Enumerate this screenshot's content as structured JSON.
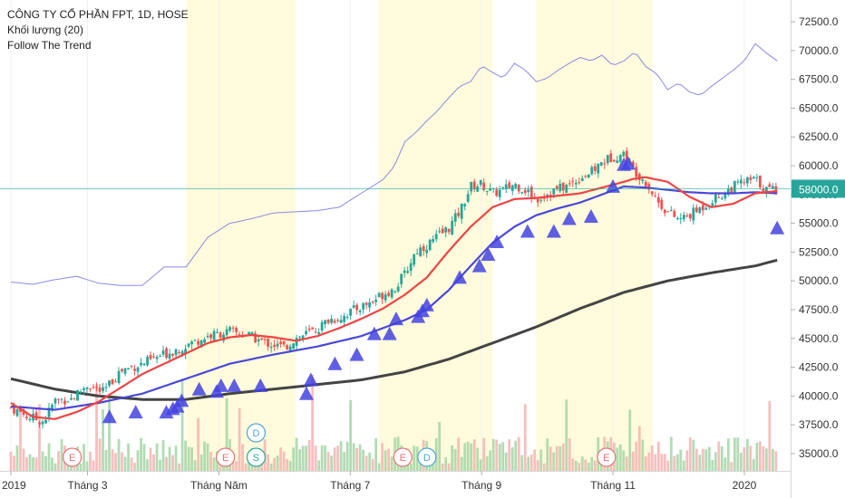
{
  "chart_data": {
    "type": "candlestick",
    "legend": {
      "title": "CÔNG TY CỔ PHẦN FPT, 1D, HOSE",
      "volume_label": "Khối lượng (20)",
      "indicator_label": "Follow The Trend"
    },
    "y_axis": {
      "side": "right",
      "ylim": [
        33500,
        74000
      ],
      "ticks": [
        "72500.0",
        "70000.0",
        "67500.0",
        "65000.0",
        "62500.0",
        "60000.0",
        "57500.0",
        "55000.0",
        "52500.0",
        "50000.0",
        "47500.0",
        "45000.0",
        "42500.0",
        "40000.0",
        "37500.0",
        "35000.0"
      ],
      "tick_values": [
        72500,
        70000,
        67500,
        65000,
        62500,
        60000,
        57500,
        55000,
        52500,
        50000,
        47500,
        45000,
        42500,
        40000,
        37500,
        35000
      ]
    },
    "x_axis": {
      "tick_labels": [
        "2019",
        "Tháng 3",
        "Tháng Năm",
        "Tháng 7",
        "Tháng 9",
        "Tháng 11",
        "2020"
      ],
      "tick_days": [
        0,
        35,
        95,
        155,
        215,
        275,
        335
      ],
      "range_days": [
        0,
        352
      ]
    },
    "current_price": {
      "value": 58000,
      "label": "58000.0",
      "color": "#26a69a"
    },
    "highlight_bands_days": [
      [
        80,
        130
      ],
      [
        168,
        220
      ],
      [
        240,
        293
      ]
    ],
    "colors": {
      "up": "#26a69a",
      "down": "#ef5350",
      "vol_up": "#a5d6a7",
      "vol_down": "#f4b4b4",
      "ma_fast": "#ef4444",
      "ma_mid": "#4848d8",
      "ma_slow": "#444444",
      "thin_line": "#8a8ae6",
      "triangle": "#4343e0",
      "band": "#fffbdc"
    },
    "close_series": {
      "days": [
        0,
        8,
        15,
        20,
        28,
        35,
        42,
        50,
        60,
        70,
        80,
        90,
        100,
        108,
        115,
        125,
        130,
        135,
        140,
        145,
        150,
        158,
        165,
        170,
        175,
        180,
        185,
        190,
        200,
        205,
        210,
        215,
        220,
        225,
        230,
        235,
        240,
        245,
        250,
        255,
        260,
        265,
        270,
        275,
        280,
        283,
        287,
        290,
        295,
        300,
        305,
        310,
        315,
        320,
        325,
        330,
        335,
        340,
        345,
        350
      ],
      "values": [
        39000,
        38200,
        37800,
        39600,
        39800,
        41000,
        40300,
        42200,
        42800,
        43600,
        44400,
        45200,
        45600,
        45300,
        44700,
        44200,
        45000,
        45400,
        45800,
        46600,
        46800,
        47600,
        48200,
        48900,
        49300,
        50600,
        52600,
        53100,
        54600,
        56000,
        58200,
        58400,
        57600,
        57900,
        58400,
        57900,
        57100,
        57600,
        58000,
        58300,
        59000,
        59400,
        60300,
        60800,
        61000,
        60000,
        59200,
        58600,
        57000,
        56000,
        55300,
        55700,
        56300,
        57000,
        57500,
        58200,
        58600,
        58800,
        57900,
        58000
      ]
    },
    "ma_fast_series": {
      "days": [
        0,
        10,
        20,
        30,
        40,
        50,
        60,
        70,
        80,
        90,
        100,
        110,
        120,
        130,
        140,
        150,
        160,
        170,
        180,
        190,
        200,
        210,
        220,
        230,
        240,
        250,
        260,
        270,
        280,
        285,
        290,
        300,
        310,
        320,
        330,
        340,
        350
      ],
      "values": [
        39400,
        38200,
        38000,
        38600,
        39500,
        40700,
        41900,
        42800,
        43700,
        44600,
        45100,
        45300,
        45100,
        44800,
        45200,
        45900,
        46700,
        47600,
        48800,
        50300,
        52600,
        54700,
        56400,
        57100,
        57200,
        57400,
        57600,
        58100,
        58600,
        58900,
        59000,
        58600,
        57300,
        56400,
        56700,
        57600,
        57800
      ]
    },
    "ma_mid_series": {
      "days": [
        0,
        20,
        40,
        60,
        80,
        100,
        120,
        140,
        160,
        180,
        190,
        200,
        210,
        220,
        230,
        240,
        250,
        260,
        270,
        280,
        290,
        300,
        310,
        320,
        330,
        340,
        350
      ],
      "values": [
        39100,
        38800,
        39400,
        40200,
        41500,
        42800,
        43600,
        44300,
        45200,
        46600,
        47500,
        49200,
        51300,
        53300,
        54700,
        55700,
        56300,
        56800,
        57500,
        58200,
        58100,
        57900,
        57700,
        57600,
        57600,
        57700,
        57600
      ]
    },
    "ma_slow_series": {
      "days": [
        0,
        20,
        40,
        60,
        80,
        100,
        120,
        140,
        160,
        180,
        200,
        220,
        240,
        260,
        280,
        300,
        320,
        340,
        350
      ],
      "values": [
        41500,
        40600,
        40000,
        39700,
        39700,
        40200,
        40600,
        41000,
        41400,
        42100,
        43200,
        44600,
        46000,
        47600,
        49000,
        50000,
        50700,
        51300,
        51800
      ]
    },
    "thin_line_series": {
      "days": [
        0,
        10,
        20,
        30,
        40,
        50,
        60,
        70,
        80,
        90,
        100,
        110,
        120,
        130,
        140,
        150,
        160,
        170,
        175,
        180,
        185,
        190,
        195,
        200,
        205,
        210,
        215,
        220,
        225,
        230,
        235,
        240,
        245,
        250,
        255,
        260,
        265,
        270,
        275,
        280,
        285,
        290,
        295,
        300,
        305,
        310,
        315,
        320,
        325,
        330,
        335,
        340,
        345,
        350
      ],
      "values": [
        49900,
        49700,
        50100,
        50400,
        49800,
        49600,
        49600,
        51200,
        51200,
        53800,
        55000,
        55400,
        55900,
        56000,
        56100,
        56400,
        57600,
        58800,
        59900,
        62100,
        62900,
        63900,
        64800,
        65900,
        66900,
        67300,
        68700,
        68100,
        67600,
        68900,
        68300,
        67300,
        67600,
        68300,
        68900,
        69400,
        69100,
        69600,
        68700,
        69100,
        69900,
        68600,
        68000,
        66600,
        67200,
        66400,
        66100,
        66900,
        67600,
        68300,
        69100,
        70600,
        69800,
        69100
      ]
    },
    "triangles": {
      "days": [
        45,
        57,
        71,
        74,
        76,
        78,
        86,
        94,
        96,
        102,
        114,
        135,
        137,
        148,
        158,
        166,
        173,
        176,
        186,
        188,
        190,
        205,
        214,
        218,
        222,
        236,
        248,
        255,
        265,
        275,
        280,
        282,
        350
      ],
      "values": [
        38200,
        38600,
        38600,
        38900,
        39100,
        39600,
        40600,
        40400,
        40900,
        40900,
        40900,
        40200,
        41400,
        42800,
        43600,
        45400,
        45400,
        46700,
        46900,
        47400,
        47900,
        50300,
        51300,
        52300,
        53400,
        54300,
        54300,
        55400,
        55600,
        58200,
        60100,
        60200,
        54600
      ]
    },
    "candle_extremes": {
      "high_label_days": [
        62,
        98,
        177,
        213,
        244,
        276
      ]
    },
    "event_markers": [
      {
        "day": 28,
        "letter": "E",
        "row": 1,
        "color": "#e57373"
      },
      {
        "day": 98,
        "letter": "E",
        "row": 1,
        "color": "#e57373"
      },
      {
        "day": 112,
        "letter": "D",
        "row": 0,
        "color": "#4fa3d8"
      },
      {
        "day": 112,
        "letter": "S",
        "row": 1,
        "color": "#26a69a"
      },
      {
        "day": 179,
        "letter": "E",
        "row": 1,
        "color": "#e57373"
      },
      {
        "day": 190,
        "letter": "D",
        "row": 1,
        "color": "#4fa3d8"
      },
      {
        "day": 272,
        "letter": "E",
        "row": 1,
        "color": "#e57373"
      }
    ]
  }
}
